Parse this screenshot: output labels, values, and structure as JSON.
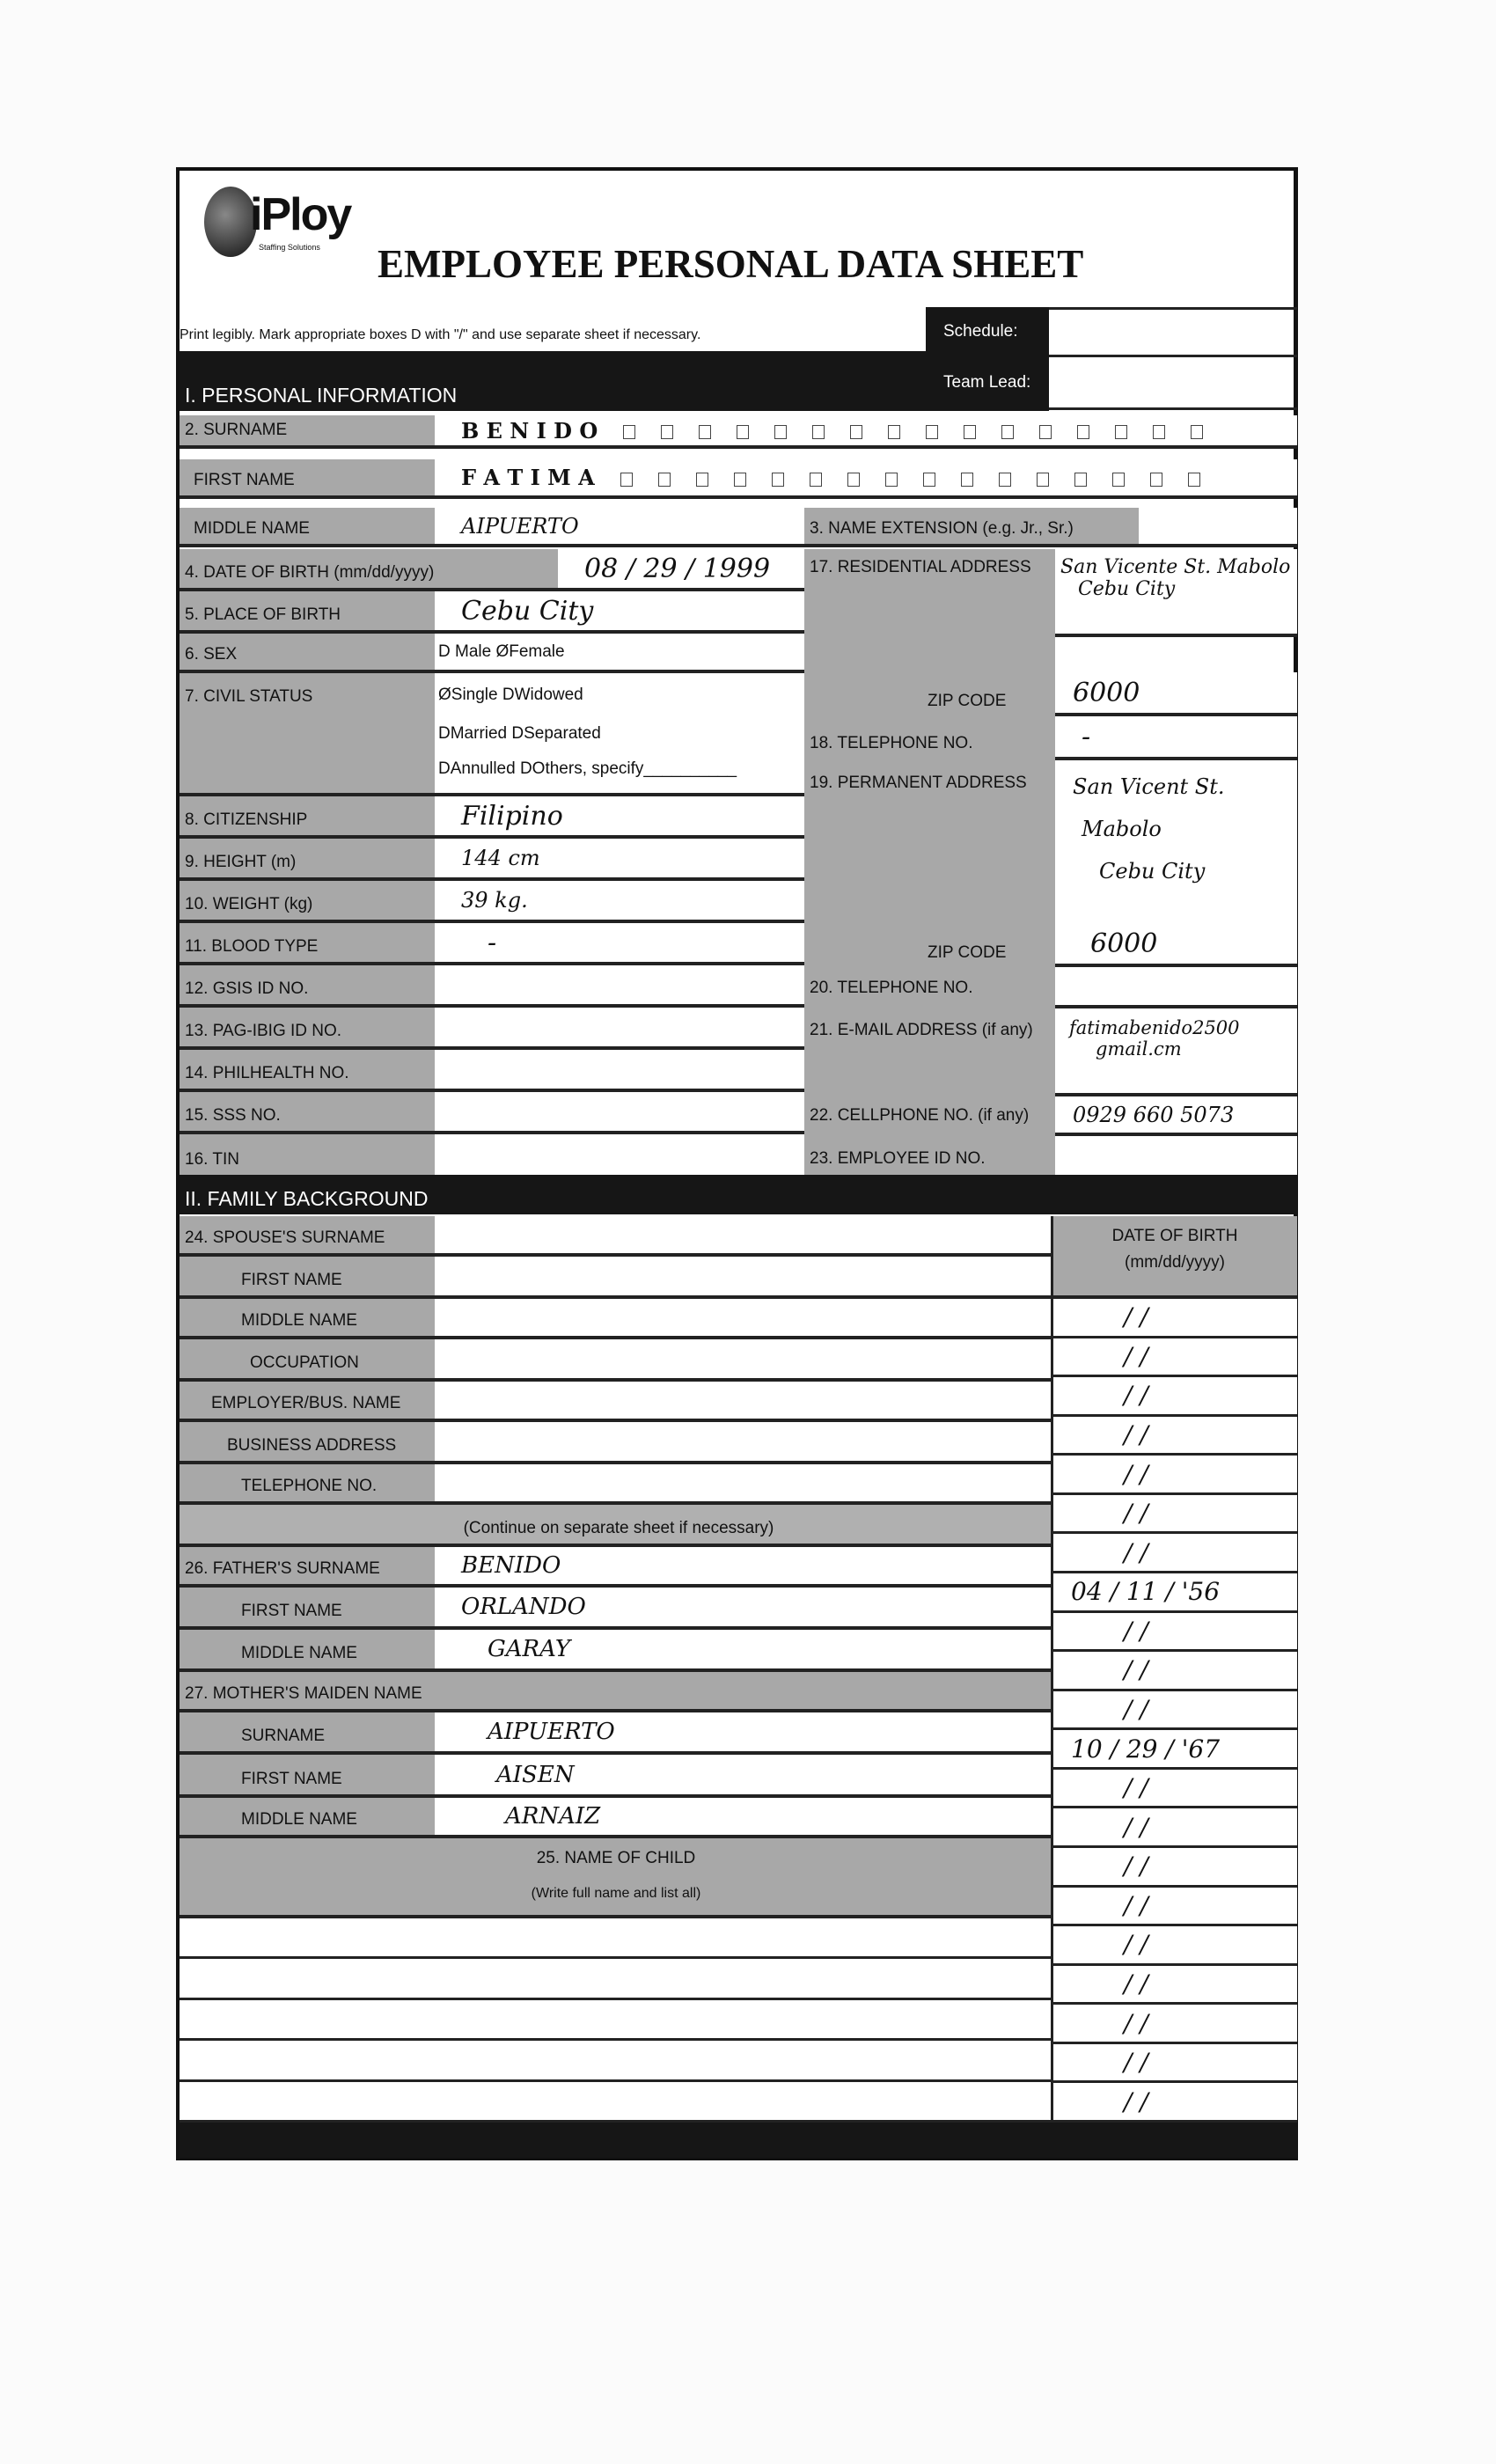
{
  "header": {
    "logo_text": "iPloy",
    "logo_subtext": "Staffing Solutions",
    "title": "EMPLOYEE PERSONAL DATA SHEET",
    "instructions": "Print legibly.  Mark appropriate boxes  D with \"/\" and use separate sheet if necessary.",
    "schedule_label": "Schedule:",
    "schedule_value": "",
    "team_lead_label": "Team Lead:",
    "team_lead_value": ""
  },
  "personal": {
    "section_title": "I. PERSONAL INFORMATION",
    "surname": {
      "label": "2. SURNAME",
      "value": "B E N I D O"
    },
    "first_name": {
      "label": "FIRST NAME",
      "value": "F A T I M A"
    },
    "middle_name": {
      "label": "MIDDLE NAME",
      "value": "AIPUERTO"
    },
    "name_extension": {
      "label": "3. NAME EXTENSION (e.g. Jr., Sr.)",
      "value": ""
    },
    "dob": {
      "label": "4. DATE OF BIRTH (mm/dd/yyyy)",
      "value": "08 / 29 / 1999"
    },
    "place_of_birth": {
      "label": "5. PLACE OF BIRTH",
      "value": "Cebu  City"
    },
    "sex": {
      "label": "6. SEX",
      "options": "D Male  ØFemale",
      "selected": "Female"
    },
    "civil_status": {
      "label": "7. CIVIL STATUS",
      "line1": "ØSingle  DWidowed",
      "line2": "DMarried  DSeparated",
      "line3": "DAnnulled  DOthers, specify__________",
      "selected": "Single"
    },
    "citizenship": {
      "label": "8. CITIZENSHIP",
      "value": "Filipino"
    },
    "height": {
      "label": "9. HEIGHT (m)",
      "value": "144 cm"
    },
    "weight": {
      "label": "10. WEIGHT (kg)",
      "value": "39 kg."
    },
    "blood_type": {
      "label": "11. BLOOD TYPE",
      "value": "-"
    },
    "gsis": {
      "label": "12. GSIS ID NO.",
      "value": ""
    },
    "pagibig": {
      "label": "13. PAG-IBIG ID NO.",
      "value": ""
    },
    "philhealth": {
      "label": "14. PHILHEALTH NO.",
      "value": ""
    },
    "sss": {
      "label": "15. SSS NO.",
      "value": ""
    },
    "tin": {
      "label": "16. TIN",
      "value": ""
    },
    "residential_address": {
      "label": "17. RESIDENTIAL ADDRESS",
      "line1": "San Vicente St. Mabolo",
      "line2": "Cebu City"
    },
    "res_zip": {
      "label": "ZIP CODE",
      "value": "6000"
    },
    "telephone1": {
      "label": "18. TELEPHONE NO.",
      "value": "-"
    },
    "permanent_address": {
      "label": "19. PERMANENT ADDRESS",
      "line1": "San Vicent St.",
      "line2": "Mabolo",
      "line3": "Cebu City"
    },
    "perm_zip": {
      "label": "ZIP CODE",
      "value": "6000"
    },
    "telephone2": {
      "label": "20. TELEPHONE NO.",
      "value": ""
    },
    "email": {
      "label": "21. E-MAIL ADDRESS (if any)",
      "line1": "fatimabenido2500",
      "line2": "gmail.cm"
    },
    "cellphone": {
      "label": "22. CELLPHONE NO. (if any)",
      "value": "0929 660 5073"
    },
    "employee_id": {
      "label": "23. EMPLOYEE ID NO.",
      "value": ""
    }
  },
  "family": {
    "section_title": "II. FAMILY BACKGROUND",
    "spouse": {
      "surname_label": "24. SPOUSE'S SURNAME",
      "first_label": "FIRST NAME",
      "middle_label": "MIDDLE NAME",
      "occupation_label": "OCCUPATION",
      "employer_label": "EMPLOYER/BUS. NAME",
      "bus_address_label": "BUSINESS ADDRESS",
      "telephone_label": "TELEPHONE NO."
    },
    "continue_note": "(Continue on separate sheet if necessary)",
    "father": {
      "surname_label": "26. FATHER'S SURNAME",
      "surname": "BENIDO",
      "first_label": "FIRST NAME",
      "first": "ORLANDO",
      "middle_label": "MIDDLE NAME",
      "middle": "GARAY"
    },
    "mother": {
      "title": "27. MOTHER'S MAIDEN NAME",
      "surname_label": "SURNAME",
      "surname": "AIPUERTO",
      "first_label": "FIRST NAME",
      "first": "AISEN",
      "middle_label": "MIDDLE NAME",
      "middle": "ARNAIZ"
    },
    "children": {
      "title": "25. NAME OF CHILD",
      "subtitle": "(Write full name and list all)"
    },
    "dob_header": "DATE OF BIRTH",
    "dob_format": "(mm/dd/yyyy)",
    "dob_entries": [
      "/    /",
      "/    /",
      "/    /",
      "/    /",
      "/    /",
      "/    /",
      "/    /",
      "04 /  11 / '56",
      "/    /",
      "/    /",
      "/    /",
      "10 /  29 / '67",
      "/    /",
      "/    /",
      "/    /",
      "/    /",
      "/    /",
      "/    /",
      "/    /",
      "/    /",
      "/    /"
    ]
  }
}
